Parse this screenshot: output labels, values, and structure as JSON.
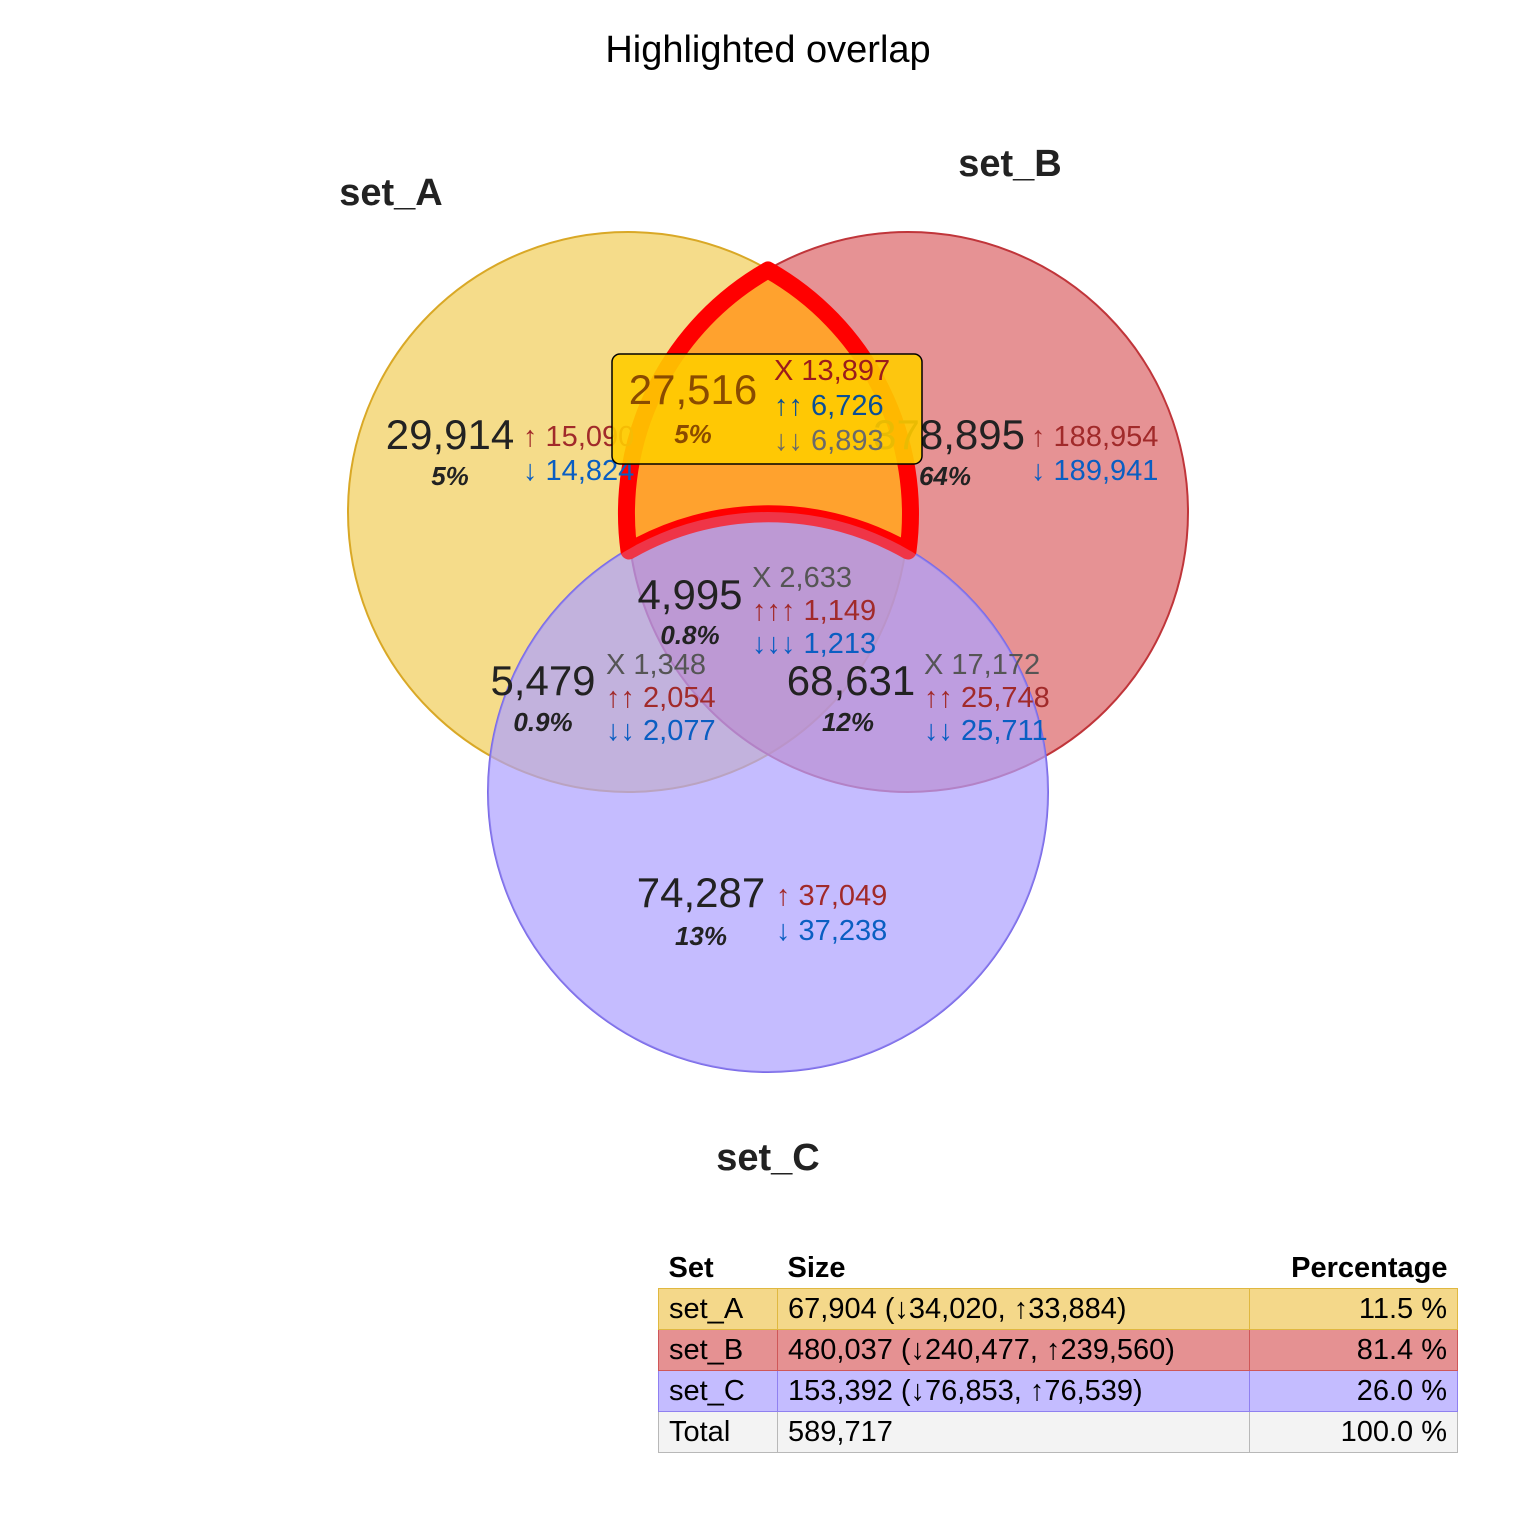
{
  "title": "Highlighted overlap",
  "sets": [
    {
      "name": "set_A",
      "color": "#f0c94b"
    },
    {
      "name": "set_B",
      "color": "#d9585a"
    },
    {
      "name": "set_C",
      "color": "#9f8fff"
    }
  ],
  "highlight": {
    "region": "A∩B only",
    "stroke": "#ff0000",
    "fill": "#ffa22e",
    "label_box": "#ffcc00"
  },
  "regions": {
    "a_only": {
      "count": "29,914",
      "pct": "5%",
      "up": "↑ 15,090",
      "down": "↓ 14,824"
    },
    "b_only": {
      "count": "378,895",
      "pct": "64%",
      "up": "↑ 188,954",
      "down": "↓ 189,941"
    },
    "c_only": {
      "count": "74,287",
      "pct": "13%",
      "up": "↑ 37,049",
      "down": "↓ 37,238"
    },
    "ab": {
      "count": "27,516",
      "pct": "5%",
      "x": "X 13,897",
      "up": "↑↑ 6,726",
      "down": "↓↓ 6,893"
    },
    "ac": {
      "count": "5,479",
      "pct": "0.9%",
      "x": "X 1,348",
      "up": "↑↑ 2,054",
      "down": "↓↓ 2,077"
    },
    "bc": {
      "count": "68,631",
      "pct": "12%",
      "x": "X 17,172",
      "up": "↑↑ 25,748",
      "down": "↓↓ 25,711"
    },
    "abc": {
      "count": "4,995",
      "pct": "0.8%",
      "x": "X 2,633",
      "up": "↑↑↑ 1,149",
      "down": "↓↓↓ 1,213"
    }
  },
  "legend": {
    "headers": {
      "set": "Set",
      "size": "Size",
      "percentage": "Percentage"
    },
    "rows": [
      {
        "set": "set_A",
        "size": "67,904 (↓34,020, ↑33,884)",
        "percentage": "11.5 %",
        "bg": "#f4d88a",
        "border": "#e0b840"
      },
      {
        "set": "set_B",
        "size": "480,037 (↓240,477, ↑239,560)",
        "percentage": "81.4 %",
        "bg": "#e59192",
        "border": "#cf5758"
      },
      {
        "set": "set_C",
        "size": "153,392 (↓76,853, ↑76,539)",
        "percentage": "26.0 %",
        "bg": "#c4bcff",
        "border": "#8f80f0"
      },
      {
        "set": "Total",
        "size": "589,717",
        "percentage": "100.0 %",
        "bg": "#f3f3f3",
        "border": "#b8b8b8"
      }
    ]
  }
}
